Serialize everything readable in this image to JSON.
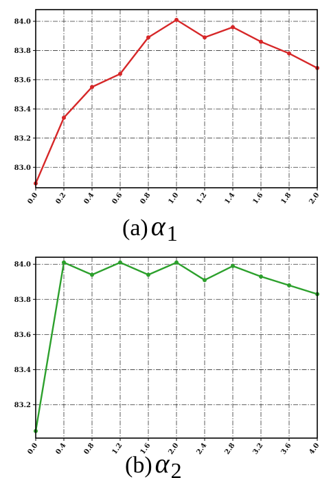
{
  "chart_data": [
    {
      "type": "line",
      "caption_prefix": "(a)",
      "caption_symbol": "α",
      "caption_subscript": "1",
      "color": "#d62728",
      "x": [
        0.0,
        0.2,
        0.4,
        0.6,
        0.8,
        1.0,
        1.2,
        1.4,
        1.6,
        1.8,
        2.0
      ],
      "x_tick_labels": [
        "0.0",
        "0.2",
        "0.4",
        "0.6",
        "0.8",
        "1.0",
        "1.2",
        "1.4",
        "1.6",
        "1.8",
        "2.0"
      ],
      "y": [
        82.89,
        83.34,
        83.55,
        83.64,
        83.89,
        84.01,
        83.89,
        83.96,
        83.86,
        83.78,
        83.68
      ],
      "y_ticks": [
        83.0,
        83.2,
        83.4,
        83.6,
        83.8,
        84.0
      ],
      "y_tick_labels": [
        "83.0",
        "83.2",
        "83.4",
        "83.6",
        "83.8",
        "84.0"
      ],
      "xlim": [
        0.0,
        2.0
      ],
      "ylim": [
        82.86,
        84.08
      ],
      "grid": true
    },
    {
      "type": "line",
      "caption_prefix": "(b)",
      "caption_symbol": "α",
      "caption_subscript": "2",
      "color": "#2ca02c",
      "x": [
        0.0,
        0.4,
        0.8,
        1.2,
        1.6,
        2.0,
        2.4,
        2.8,
        3.2,
        3.6,
        4.0
      ],
      "x_tick_labels": [
        "0.0",
        "0.4",
        "0.8",
        "1.2",
        "1.6",
        "2.0",
        "2.4",
        "2.8",
        "3.2",
        "3.6",
        "4.0"
      ],
      "y": [
        83.05,
        84.01,
        83.94,
        84.01,
        83.94,
        84.01,
        83.91,
        83.99,
        83.93,
        83.88,
        83.83
      ],
      "y_ticks": [
        83.2,
        83.4,
        83.6,
        83.8,
        84.0
      ],
      "y_tick_labels": [
        "83.2",
        "83.4",
        "83.6",
        "83.8",
        "84.0"
      ],
      "xlim": [
        0.0,
        4.0
      ],
      "ylim": [
        83.01,
        84.04
      ],
      "grid": true
    }
  ]
}
